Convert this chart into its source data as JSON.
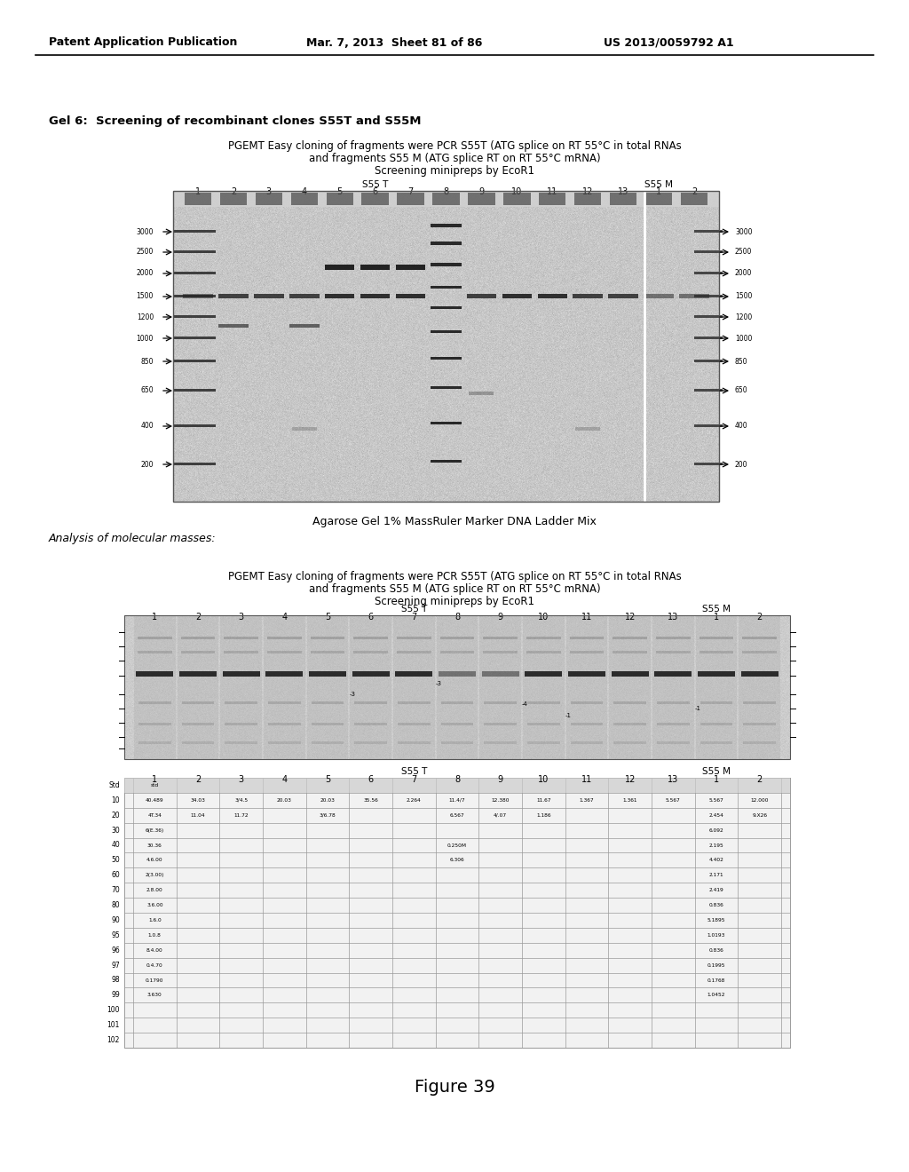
{
  "bg_color": "#ffffff",
  "header_left": "Patent Application Publication",
  "header_mid": "Mar. 7, 2013  Sheet 81 of 86",
  "header_right": "US 2013/0059792 A1",
  "gel6_label": "Gel 6:  Screening of recombinant clones S55T and S55M",
  "subtitle1": "PGEMT Easy cloning of fragments were PCR S55T (ATG splice on RT 55°C in total RNAs",
  "subtitle2": "and fragments S55 M (ATG splice RT on RT 55°C mRNA)",
  "subtitle3": "Screening minipreps by EcoR1",
  "s55t_label": "S55 T",
  "s55m_label": "S55 M",
  "lane_numbers_main": [
    "1",
    "2",
    "3",
    "4",
    "5",
    "6",
    "7",
    "8",
    "9",
    "10",
    "11",
    "12",
    "13",
    "1",
    "2"
  ],
  "gel_caption": "Agarose Gel 1% MassRuler Marker DNA Ladder Mix",
  "analysis_label": "Analysis of molecular masses:",
  "subtitle1b": "PGEMT Easy cloning of fragments were PCR S55T (ATG splice on RT 55°C in total RNAs",
  "subtitle2b": "and fragments S55 M (ATG splice RT on RT 55°C mRNA)",
  "subtitle3b": "Screening minipreps by EcoR1",
  "s55t_label2": "S55 T",
  "s55m_label2": "S55 M",
  "s55t_label3": "S55 T",
  "s55m_label3": "S55 M",
  "lane_numbers2": [
    "1",
    "2",
    "3",
    "4",
    "5",
    "6",
    "7",
    "8",
    "9",
    "10",
    "11",
    "12",
    "13",
    "1",
    "2"
  ],
  "figure_label": "Figure 39",
  "marker_labels": [
    "3000",
    "2500",
    "2000",
    "1500",
    "1200",
    "1000",
    "850",
    "650",
    "400",
    "200"
  ]
}
